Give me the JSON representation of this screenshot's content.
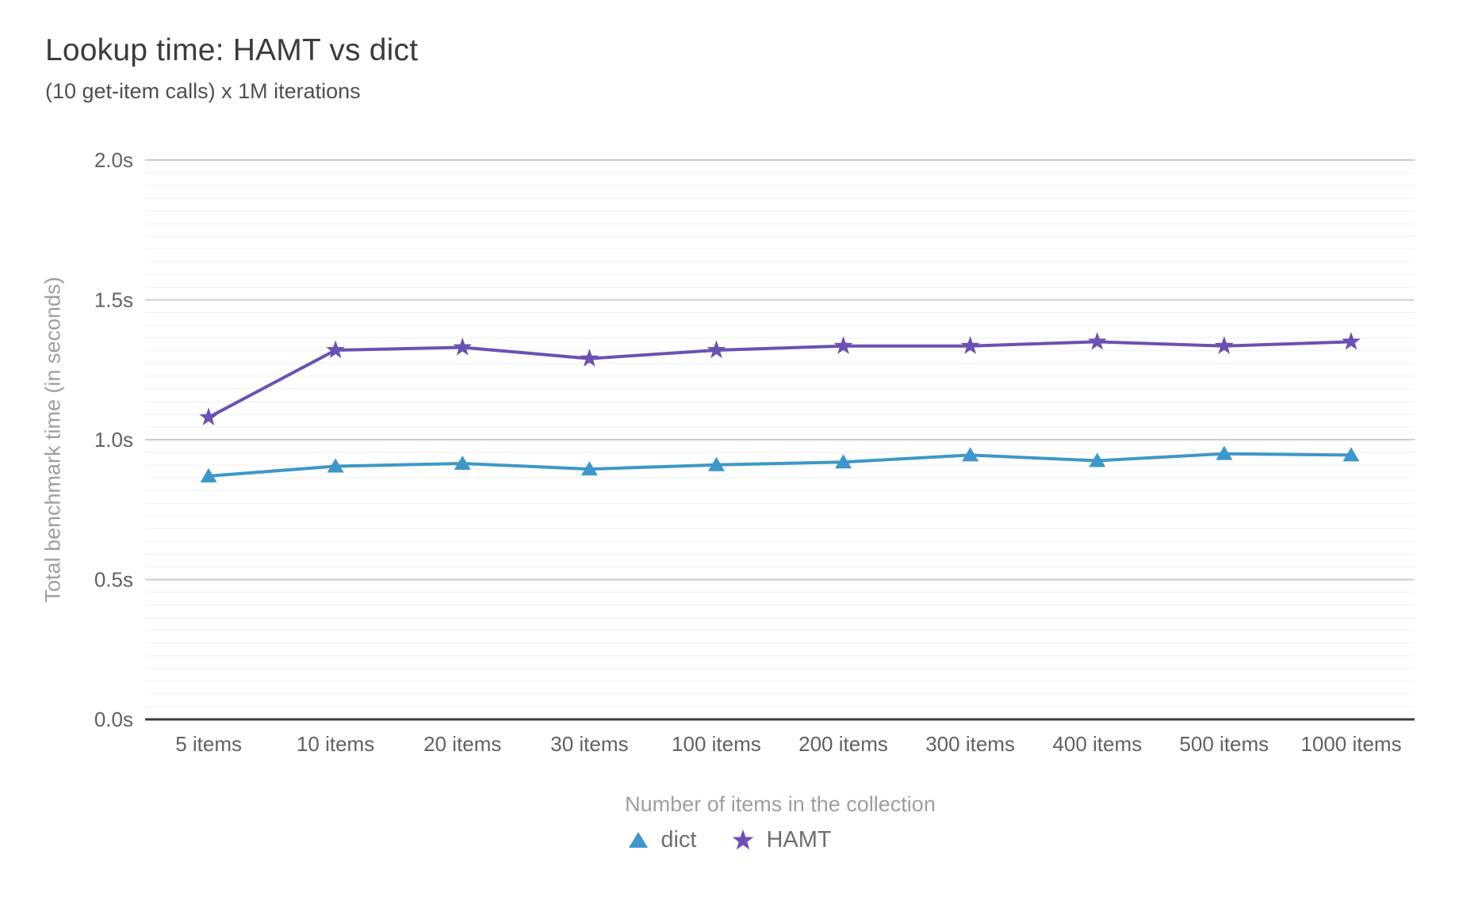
{
  "chart_data": {
    "type": "line",
    "title": "Lookup time: HAMT vs dict",
    "subtitle": "(10 get-item calls) x 1M iterations",
    "xlabel": "Number of items in the collection",
    "ylabel": "Total benchmark time (in seconds)",
    "categories": [
      "5 items",
      "10 items",
      "20 items",
      "30 items",
      "100 items",
      "200 items",
      "300 items",
      "400 items",
      "500 items",
      "1000 items"
    ],
    "series": [
      {
        "name": "dict",
        "color": "#3e97c8",
        "marker": "triangle",
        "values": [
          0.87,
          0.905,
          0.915,
          0.895,
          0.91,
          0.92,
          0.945,
          0.925,
          0.95,
          0.945
        ]
      },
      {
        "name": "HAMT",
        "color": "#6a51b2",
        "marker": "star",
        "values": [
          1.08,
          1.32,
          1.33,
          1.29,
          1.32,
          1.335,
          1.335,
          1.35,
          1.335,
          1.35
        ]
      }
    ],
    "ylim": [
      0,
      2
    ],
    "y_ticks": [
      {
        "value": 0.0,
        "label": "0.0s"
      },
      {
        "value": 0.5,
        "label": "0.5s"
      },
      {
        "value": 1.0,
        "label": "1.0s"
      },
      {
        "value": 1.5,
        "label": "1.5s"
      },
      {
        "value": 2.0,
        "label": "2.0s"
      }
    ],
    "grid": {
      "major_color": "#cccccc",
      "minor_color": "#efefef",
      "minor_between_major": 10,
      "axis_line_color": "#3d3d3d",
      "tick_label_color": "#616161"
    },
    "legend_position": "bottom"
  }
}
